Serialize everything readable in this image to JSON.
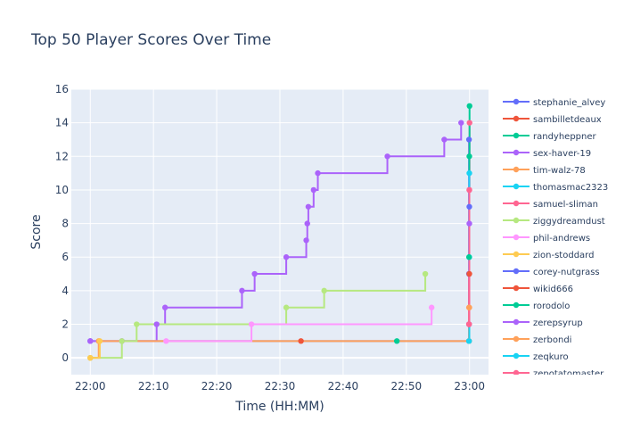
{
  "chart_data": {
    "type": "line",
    "line_shape": "step",
    "title": "Top 50 Player Scores Over Time",
    "xlabel": "Time (HH:MM)",
    "ylabel": "Score",
    "x_ticks": [
      "22:00",
      "22:10",
      "22:20",
      "22:30",
      "22:40",
      "22:50",
      "23:00"
    ],
    "y_ticks": [
      0,
      2,
      4,
      6,
      8,
      10,
      12,
      14,
      16
    ],
    "xlim": [
      "21:57",
      "23:03"
    ],
    "ylim": [
      -1,
      16
    ],
    "grid": true,
    "legend_position": "right",
    "series": [
      {
        "name": "stephanie_alvey",
        "color": "#636efa",
        "points": [
          [
            "22:00",
            1
          ],
          [
            "22:59:55",
            1
          ],
          [
            "22:59:55",
            13
          ]
        ]
      },
      {
        "name": "sambilletdeaux",
        "color": "#EF553B",
        "points": [
          [
            "22:33:20",
            1
          ]
        ]
      },
      {
        "name": "randyheppner",
        "color": "#00cc96",
        "points": [
          [
            "22:48:30",
            1
          ]
        ]
      },
      {
        "name": "sex-haver-19",
        "color": "#ab63fa",
        "points": [
          [
            "22:00",
            1
          ],
          [
            "22:05",
            1
          ],
          [
            "22:10:30",
            2
          ],
          [
            "22:11:50",
            3
          ],
          [
            "22:24",
            4
          ],
          [
            "22:26",
            5
          ],
          [
            "22:31",
            6
          ],
          [
            "22:34:10",
            7
          ],
          [
            "22:34:20",
            8
          ],
          [
            "22:34:30",
            9
          ],
          [
            "22:35:20",
            10
          ],
          [
            "22:36",
            11
          ],
          [
            "22:47",
            12
          ],
          [
            "22:56",
            13
          ],
          [
            "22:58:40",
            14
          ]
        ]
      },
      {
        "name": "tim-walz-78",
        "color": "#FFA15A",
        "points": [
          [
            "22:00",
            0
          ],
          [
            "22:01:20",
            1
          ],
          [
            "22:59:55",
            1
          ],
          [
            "22:59:55",
            3
          ]
        ]
      },
      {
        "name": "thomasmac2323",
        "color": "#19d3f3",
        "points": [
          [
            "22:59:55",
            1
          ],
          [
            "22:59:58",
            6
          ]
        ]
      },
      {
        "name": "samuel-sliman",
        "color": "#FF6692",
        "points": [
          [
            "22:59:55",
            2
          ],
          [
            "22:59:55",
            5
          ],
          [
            "22:59:58",
            10
          ],
          [
            "23:00",
            14
          ]
        ]
      },
      {
        "name": "ziggydreamdust",
        "color": "#B6E880",
        "points": [
          [
            "22:00",
            0
          ],
          [
            "22:05",
            1
          ],
          [
            "22:07:20",
            2
          ],
          [
            "22:31",
            3
          ],
          [
            "22:37",
            4
          ],
          [
            "22:53",
            5
          ]
        ]
      },
      {
        "name": "phil-andrews",
        "color": "#FF97FF",
        "points": [
          [
            "22:12",
            1
          ],
          [
            "22:25:30",
            2
          ],
          [
            "22:54",
            3
          ]
        ]
      },
      {
        "name": "zion-stoddard",
        "color": "#FECB52",
        "points": [
          [
            "22:00",
            0
          ],
          [
            "22:01:30",
            1
          ]
        ]
      },
      {
        "name": "corey-nutgrass",
        "color": "#636efa",
        "points": [
          [
            "22:59:55",
            5
          ],
          [
            "22:59:58",
            9
          ]
        ]
      },
      {
        "name": "wikid666",
        "color": "#EF553B",
        "points": [
          [
            "22:59:55",
            2
          ],
          [
            "22:59:58",
            5
          ]
        ]
      },
      {
        "name": "rorodolo",
        "color": "#00cc96",
        "points": [
          [
            "22:59:55",
            6
          ],
          [
            "22:59:58",
            12
          ],
          [
            "23:00",
            15
          ]
        ]
      },
      {
        "name": "zerepsyrup",
        "color": "#ab63fa",
        "points": [
          [
            "22:59:55",
            2
          ],
          [
            "22:59:58",
            8
          ]
        ]
      },
      {
        "name": "zerbondi",
        "color": "#FFA15A",
        "points": [
          [
            "22:59:55",
            1
          ],
          [
            "22:59:58",
            3
          ]
        ]
      },
      {
        "name": "zeqkuro",
        "color": "#19d3f3",
        "points": [
          [
            "22:59:55",
            1
          ],
          [
            "22:59:58",
            11
          ]
        ]
      },
      {
        "name": "zepotatomaster",
        "color": "#FF6692",
        "points": [
          [
            "22:59:55",
            2
          ],
          [
            "22:59:58",
            10
          ]
        ]
      }
    ]
  },
  "colors": {
    "plot_background": "#e5ecf6",
    "grid": "#ffffff",
    "text": "#2a3f5f",
    "page_background": "#ffffff"
  }
}
